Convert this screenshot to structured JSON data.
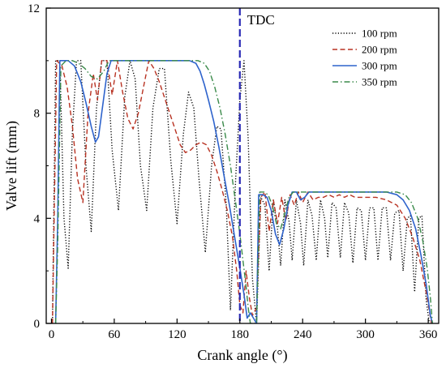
{
  "chart_data": {
    "type": "line",
    "xlabel": "Crank angle (°)",
    "ylabel": "Valve lift (mm)",
    "xlim": [
      -5,
      370
    ],
    "ylim": [
      0,
      12
    ],
    "xticks": [
      0,
      60,
      120,
      180,
      240,
      300,
      360
    ],
    "yticks": [
      0,
      4,
      8,
      12
    ],
    "legend_position": "top-right",
    "annotations": [
      {
        "text": "TDC",
        "x": 180,
        "style": "vertical dashed line",
        "color": "#2a2ab4"
      }
    ],
    "series": [
      {
        "name": "100 rpm",
        "color": "#000000",
        "dash": "dotted",
        "points": [
          [
            1,
            0
          ],
          [
            4,
            10
          ],
          [
            8,
            10
          ],
          [
            12,
            4
          ],
          [
            16,
            2.1
          ],
          [
            20,
            7.3
          ],
          [
            24,
            10
          ],
          [
            28,
            10
          ],
          [
            33,
            6
          ],
          [
            38,
            3.5
          ],
          [
            43,
            8.2
          ],
          [
            48,
            10
          ],
          [
            53,
            10
          ],
          [
            58,
            6.6
          ],
          [
            64,
            4.3
          ],
          [
            70,
            8.6
          ],
          [
            75,
            10
          ],
          [
            80,
            9.3
          ],
          [
            85,
            6
          ],
          [
            91,
            4.3
          ],
          [
            97,
            8.2
          ],
          [
            103,
            9.7
          ],
          [
            108,
            9.7
          ],
          [
            114,
            6.2
          ],
          [
            120,
            3.8
          ],
          [
            126,
            7.2
          ],
          [
            131,
            8.8
          ],
          [
            136,
            8.2
          ],
          [
            141,
            5.5
          ],
          [
            147,
            2.7
          ],
          [
            153,
            6
          ],
          [
            158,
            7.5
          ],
          [
            162,
            7.4
          ],
          [
            167,
            4.5
          ],
          [
            171,
            0.5
          ],
          [
            176,
            5.5
          ],
          [
            180,
            8.5
          ],
          [
            184,
            10
          ],
          [
            188,
            7
          ],
          [
            192,
            1.7
          ],
          [
            196,
            0
          ],
          [
            200,
            4.8
          ],
          [
            204,
            4.5
          ],
          [
            208,
            2
          ],
          [
            212,
            4.7
          ],
          [
            216,
            3.6
          ],
          [
            219,
            2.2
          ],
          [
            223,
            4.7
          ],
          [
            227,
            3.9
          ],
          [
            230,
            2.4
          ],
          [
            234,
            4.7
          ],
          [
            238,
            3.8
          ],
          [
            241,
            2.2
          ],
          [
            245,
            4.7
          ],
          [
            249,
            4.1
          ],
          [
            253,
            2.4
          ],
          [
            257,
            4.7
          ],
          [
            261,
            4
          ],
          [
            264,
            2.5
          ],
          [
            268,
            4.6
          ],
          [
            272,
            4.4
          ],
          [
            276,
            2.5
          ],
          [
            280,
            4.6
          ],
          [
            284,
            4.2
          ],
          [
            288,
            2.3
          ],
          [
            292,
            4.4
          ],
          [
            296,
            4.3
          ],
          [
            300,
            2.4
          ],
          [
            304,
            4.4
          ],
          [
            308,
            4.4
          ],
          [
            312,
            2.4
          ],
          [
            316,
            4.4
          ],
          [
            320,
            4.4
          ],
          [
            324,
            2.4
          ],
          [
            328,
            4.2
          ],
          [
            332,
            4.3
          ],
          [
            336,
            2
          ],
          [
            340,
            4
          ],
          [
            343,
            4.1
          ],
          [
            347,
            1.2
          ],
          [
            351,
            4
          ],
          [
            354,
            4.1
          ],
          [
            358,
            0.9
          ],
          [
            361,
            0
          ]
        ]
      },
      {
        "name": "200 rpm",
        "color": "#b83222",
        "dash": "dashed",
        "points": [
          [
            1,
            0
          ],
          [
            5,
            10
          ],
          [
            10,
            9.8
          ],
          [
            15,
            9
          ],
          [
            20,
            7.5
          ],
          [
            25,
            5.5
          ],
          [
            30,
            4.6
          ],
          [
            35,
            8
          ],
          [
            40,
            9.5
          ],
          [
            44,
            8.5
          ],
          [
            48,
            10
          ],
          [
            53,
            10
          ],
          [
            58,
            8.7
          ],
          [
            63,
            10
          ],
          [
            68,
            8.8
          ],
          [
            73,
            7.8
          ],
          [
            78,
            7.4
          ],
          [
            83,
            8
          ],
          [
            88,
            9
          ],
          [
            93,
            10
          ],
          [
            98,
            9.7
          ],
          [
            103,
            9.2
          ],
          [
            108,
            8.6
          ],
          [
            113,
            8
          ],
          [
            118,
            7.4
          ],
          [
            123,
            6.8
          ],
          [
            128,
            6.5
          ],
          [
            133,
            6.6
          ],
          [
            138,
            6.8
          ],
          [
            143,
            6.9
          ],
          [
            148,
            6.8
          ],
          [
            153,
            6.4
          ],
          [
            158,
            5.8
          ],
          [
            163,
            5.1
          ],
          [
            168,
            4.3
          ],
          [
            173,
            3.3
          ],
          [
            177,
            2
          ],
          [
            180,
            0.7
          ],
          [
            183,
            0.4
          ],
          [
            186,
            2
          ],
          [
            189,
            1
          ],
          [
            192,
            0.3
          ],
          [
            196,
            0.6
          ],
          [
            200,
            4.8
          ],
          [
            204,
            5
          ],
          [
            208,
            3.5
          ],
          [
            212,
            4.7
          ],
          [
            216,
            3.8
          ],
          [
            220,
            4.8
          ],
          [
            224,
            3.9
          ],
          [
            228,
            4.9
          ],
          [
            232,
            4.5
          ],
          [
            236,
            5
          ],
          [
            240,
            4.6
          ],
          [
            245,
            5
          ],
          [
            250,
            4.7
          ],
          [
            255,
            4.8
          ],
          [
            260,
            4.8
          ],
          [
            265,
            4.9
          ],
          [
            270,
            4.8
          ],
          [
            275,
            4.9
          ],
          [
            280,
            4.8
          ],
          [
            285,
            4.9
          ],
          [
            290,
            4.8
          ],
          [
            300,
            4.8
          ],
          [
            310,
            4.8
          ],
          [
            320,
            4.7
          ],
          [
            330,
            4.5
          ],
          [
            338,
            4
          ],
          [
            345,
            3.3
          ],
          [
            352,
            2.4
          ],
          [
            358,
            1.2
          ],
          [
            363,
            0
          ]
        ]
      },
      {
        "name": "300 rpm",
        "color": "#2e63cc",
        "dash": "solid",
        "points": [
          [
            4,
            0
          ],
          [
            6,
            4
          ],
          [
            8,
            10
          ],
          [
            11,
            10
          ],
          [
            16,
            10
          ],
          [
            22,
            9.8
          ],
          [
            28,
            9.2
          ],
          [
            33,
            8.4
          ],
          [
            38,
            7.5
          ],
          [
            42,
            6.9
          ],
          [
            45,
            7.1
          ],
          [
            49,
            8.3
          ],
          [
            53,
            9.5
          ],
          [
            57,
            10
          ],
          [
            62,
            10
          ],
          [
            80,
            10
          ],
          [
            100,
            10
          ],
          [
            120,
            10
          ],
          [
            132,
            10
          ],
          [
            138,
            9.9
          ],
          [
            142,
            9.6
          ],
          [
            146,
            9.1
          ],
          [
            150,
            8.5
          ],
          [
            155,
            7.7
          ],
          [
            160,
            6.7
          ],
          [
            165,
            5.6
          ],
          [
            170,
            4.5
          ],
          [
            175,
            3.3
          ],
          [
            180,
            2.1
          ],
          [
            184,
            1.1
          ],
          [
            187,
            0.2
          ],
          [
            190,
            0.4
          ],
          [
            193,
            0.2
          ],
          [
            196,
            0
          ],
          [
            198,
            4.9
          ],
          [
            202,
            4.9
          ],
          [
            206,
            4.8
          ],
          [
            210,
            4.3
          ],
          [
            214,
            3.4
          ],
          [
            218,
            3
          ],
          [
            222,
            3.6
          ],
          [
            226,
            4.5
          ],
          [
            230,
            5
          ],
          [
            234,
            5
          ],
          [
            238,
            4.7
          ],
          [
            242,
            4.8
          ],
          [
            246,
            5
          ],
          [
            255,
            5
          ],
          [
            280,
            5
          ],
          [
            300,
            5
          ],
          [
            320,
            5
          ],
          [
            330,
            4.9
          ],
          [
            336,
            4.7
          ],
          [
            342,
            4.3
          ],
          [
            348,
            3.6
          ],
          [
            353,
            2.6
          ],
          [
            358,
            1.5
          ],
          [
            362,
            0.3
          ],
          [
            364,
            0
          ]
        ]
      },
      {
        "name": "350 rpm",
        "color": "#3a8a4a",
        "dash": "dashdot",
        "points": [
          [
            4,
            0
          ],
          [
            6,
            3
          ],
          [
            9,
            9.8
          ],
          [
            14,
            10
          ],
          [
            20,
            10
          ],
          [
            26,
            9.9
          ],
          [
            32,
            9.7
          ],
          [
            38,
            9.4
          ],
          [
            44,
            9.3
          ],
          [
            50,
            9.6
          ],
          [
            55,
            10
          ],
          [
            60,
            10
          ],
          [
            100,
            10
          ],
          [
            130,
            10
          ],
          [
            140,
            10
          ],
          [
            146,
            9.9
          ],
          [
            151,
            9.6
          ],
          [
            156,
            9
          ],
          [
            161,
            8.2
          ],
          [
            166,
            7.2
          ],
          [
            171,
            6
          ],
          [
            176,
            4.6
          ],
          [
            180,
            3.4
          ],
          [
            183,
            2.4
          ],
          [
            186,
            1.4
          ],
          [
            188,
            0.6
          ],
          [
            190,
            0
          ],
          [
            196,
            0
          ],
          [
            199,
            5
          ],
          [
            203,
            5
          ],
          [
            207,
            4.9
          ],
          [
            211,
            4.5
          ],
          [
            215,
            3.8
          ],
          [
            219,
            3.6
          ],
          [
            223,
            4.2
          ],
          [
            227,
            4.8
          ],
          [
            231,
            5
          ],
          [
            240,
            5
          ],
          [
            260,
            5
          ],
          [
            300,
            5
          ],
          [
            330,
            5
          ],
          [
            338,
            4.9
          ],
          [
            344,
            4.6
          ],
          [
            350,
            4
          ],
          [
            355,
            3.1
          ],
          [
            359,
            2.1
          ],
          [
            362,
            1
          ],
          [
            364,
            0
          ]
        ]
      }
    ]
  }
}
